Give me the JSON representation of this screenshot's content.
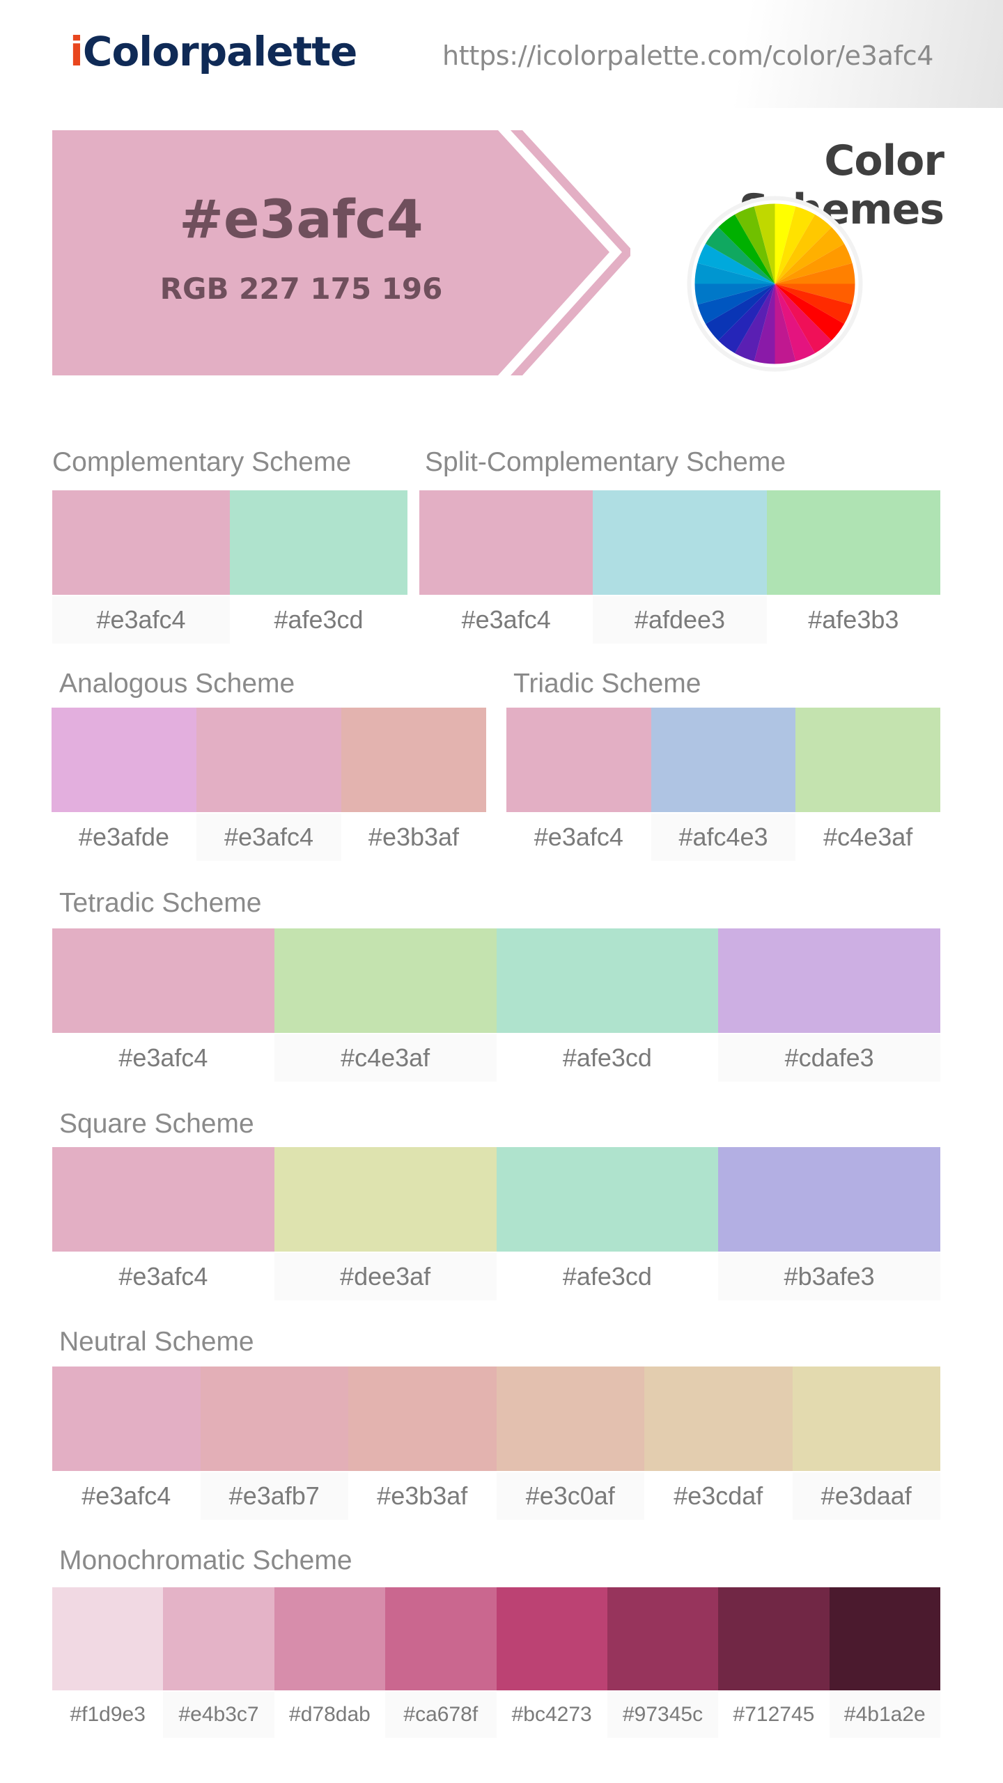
{
  "brand": {
    "logo_accent": "i",
    "logo_rest": "Colorpalette",
    "url": "https://icolorpalette.com/color/e3afc4"
  },
  "hero": {
    "hex": "#e3afc4",
    "rgb": "RGB 227 175 196",
    "color": "#e3afc4",
    "text_color": "#6f4f5c"
  },
  "schemes_title": "Color Schemes",
  "wheel_colors": [
    "#ffff00",
    "#ffe200",
    "#ffc800",
    "#ffb000",
    "#ff9a00",
    "#ff8000",
    "#ff5e00",
    "#ff2a00",
    "#ff0000",
    "#f01058",
    "#e4147f",
    "#c01890",
    "#8a1aa8",
    "#5a1fb3",
    "#2525b8",
    "#0a35b5",
    "#0056c0",
    "#0078c8",
    "#0096d0",
    "#00a9dc",
    "#10a860",
    "#00b000",
    "#70c000",
    "#c0d800"
  ],
  "schemes": [
    {
      "id": "complementary",
      "title": "Complementary Scheme",
      "colors": [
        {
          "hex": "#e3afc4",
          "label": "#e3afc4"
        },
        {
          "hex": "#afe3cd",
          "label": "#afe3cd"
        }
      ]
    },
    {
      "id": "split-complementary",
      "title": "Split-Complementary Scheme",
      "colors": [
        {
          "hex": "#e3afc4",
          "label": "#e3afc4"
        },
        {
          "hex": "#afdee3",
          "label": "#afdee3"
        },
        {
          "hex": "#afe3b3",
          "label": "#afe3b3"
        }
      ]
    },
    {
      "id": "analogous",
      "title": "Analogous Scheme",
      "colors": [
        {
          "hex": "#e3afde",
          "label": "#e3afde"
        },
        {
          "hex": "#e3afc4",
          "label": "#e3afc4"
        },
        {
          "hex": "#e3b3af",
          "label": "#e3b3af"
        }
      ]
    },
    {
      "id": "triadic",
      "title": "Triadic Scheme",
      "colors": [
        {
          "hex": "#e3afc4",
          "label": "#e3afc4"
        },
        {
          "hex": "#afc4e3",
          "label": "#afc4e3"
        },
        {
          "hex": "#c4e3af",
          "label": "#c4e3af"
        }
      ]
    },
    {
      "id": "tetradic",
      "title": "Tetradic Scheme",
      "colors": [
        {
          "hex": "#e3afc4",
          "label": "#e3afc4"
        },
        {
          "hex": "#c4e3af",
          "label": "#c4e3af"
        },
        {
          "hex": "#afe3cd",
          "label": "#afe3cd"
        },
        {
          "hex": "#cdafe3",
          "label": "#cdafe3"
        }
      ]
    },
    {
      "id": "square",
      "title": "Square Scheme",
      "colors": [
        {
          "hex": "#e3afc4",
          "label": "#e3afc4"
        },
        {
          "hex": "#dee3af",
          "label": "#dee3af"
        },
        {
          "hex": "#afe3cd",
          "label": "#afe3cd"
        },
        {
          "hex": "#b3afe3",
          "label": "#b3afe3"
        }
      ]
    },
    {
      "id": "neutral",
      "title": "Neutral Scheme",
      "colors": [
        {
          "hex": "#e3afc4",
          "label": "#e3afc4"
        },
        {
          "hex": "#e3afb7",
          "label": "#e3afb7"
        },
        {
          "hex": "#e3b3af",
          "label": "#e3b3af"
        },
        {
          "hex": "#e3c0af",
          "label": "#e3c0af"
        },
        {
          "hex": "#e3cdaf",
          "label": "#e3cdaf"
        },
        {
          "hex": "#e3daaf",
          "label": "#e3daaf"
        }
      ]
    },
    {
      "id": "monochromatic",
      "title": "Monochromatic Scheme",
      "colors": [
        {
          "hex": "#f1d9e3",
          "label": "#f1d9e3"
        },
        {
          "hex": "#e4b3c7",
          "label": "#e4b3c7"
        },
        {
          "hex": "#d78dab",
          "label": "#d78dab"
        },
        {
          "hex": "#ca678f",
          "label": "#ca678f"
        },
        {
          "hex": "#bc4273",
          "label": "#bc4273"
        },
        {
          "hex": "#97345c",
          "label": "#97345c"
        },
        {
          "hex": "#712745",
          "label": "#712745"
        },
        {
          "hex": "#4b1a2e",
          "label": "#4b1a2e"
        }
      ]
    }
  ]
}
